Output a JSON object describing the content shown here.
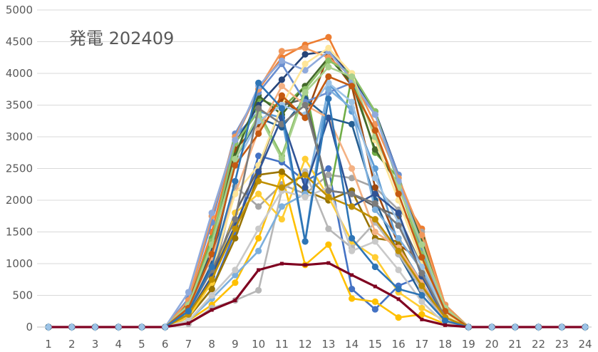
{
  "chart_data": {
    "type": "line",
    "title": "発電 202409",
    "xlabel": "",
    "ylabel": "",
    "x": [
      "1",
      "2",
      "3",
      "4",
      "5",
      "6",
      "7",
      "8",
      "9",
      "10",
      "11",
      "12",
      "13",
      "14",
      "15",
      "16",
      "17",
      "18",
      "19",
      "20",
      "21",
      "22",
      "23",
      "24"
    ],
    "ylim": [
      0,
      5000
    ],
    "yticks": [
      "0",
      "500",
      "1000",
      "1500",
      "2000",
      "2500",
      "3000",
      "3500",
      "4000",
      "4500",
      "5000"
    ],
    "grid": true,
    "legend": "none",
    "series": [
      {
        "color": "#4472C4",
        "values": [
          0,
          0,
          0,
          0,
          0,
          0,
          150,
          600,
          1500,
          2700,
          2600,
          2300,
          2500,
          600,
          280,
          650,
          800,
          150,
          0,
          0,
          0,
          0,
          0,
          0
        ]
      },
      {
        "color": "#ED7D31",
        "values": [
          0,
          0,
          0,
          0,
          0,
          0,
          380,
          1500,
          2950,
          3750,
          4250,
          4450,
          4570,
          3820,
          3100,
          2150,
          1550,
          350,
          0,
          0,
          0,
          0,
          0,
          0
        ]
      },
      {
        "color": "#A5A5A5",
        "values": [
          0,
          0,
          0,
          0,
          0,
          0,
          200,
          700,
          2220,
          1900,
          2250,
          2100,
          2400,
          2350,
          2200,
          1850,
          1500,
          200,
          0,
          0,
          0,
          0,
          0,
          0
        ]
      },
      {
        "color": "#FFC000",
        "values": [
          0,
          0,
          0,
          0,
          0,
          0,
          100,
          350,
          700,
          1400,
          2400,
          980,
          1300,
          450,
          400,
          150,
          200,
          50,
          0,
          0,
          0,
          0,
          0,
          0
        ]
      },
      {
        "color": "#5B9BD5",
        "values": [
          0,
          0,
          0,
          0,
          0,
          0,
          300,
          1200,
          3000,
          3400,
          3300,
          1350,
          3850,
          3400,
          2500,
          1300,
          700,
          150,
          0,
          0,
          0,
          0,
          0,
          0
        ]
      },
      {
        "color": "#70AD47",
        "values": [
          0,
          0,
          0,
          0,
          0,
          0,
          350,
          1400,
          2700,
          3600,
          3450,
          3800,
          2000,
          3950,
          2750,
          2350,
          1350,
          350,
          0,
          0,
          0,
          0,
          0,
          0
        ]
      },
      {
        "color": "#264478",
        "values": [
          0,
          0,
          0,
          0,
          0,
          0,
          300,
          1200,
          2900,
          3500,
          3900,
          4300,
          4350,
          3950,
          3400,
          2400,
          1100,
          150,
          0,
          0,
          0,
          0,
          0,
          0
        ]
      },
      {
        "color": "#9E480E",
        "values": [
          0,
          0,
          0,
          0,
          0,
          0,
          400,
          1300,
          2800,
          3200,
          3600,
          3300,
          4300,
          3800,
          2200,
          1300,
          1050,
          300,
          0,
          0,
          0,
          0,
          0,
          0
        ]
      },
      {
        "color": "#636363",
        "values": [
          0,
          0,
          0,
          0,
          0,
          0,
          200,
          800,
          1800,
          2500,
          3500,
          3600,
          2150,
          2100,
          1900,
          1750,
          950,
          200,
          0,
          0,
          0,
          0,
          0,
          0
        ]
      },
      {
        "color": "#997300",
        "values": [
          0,
          0,
          0,
          0,
          0,
          0,
          150,
          600,
          1400,
          2400,
          2450,
          2150,
          2000,
          2150,
          1400,
          1350,
          600,
          150,
          0,
          0,
          0,
          0,
          0,
          0
        ]
      },
      {
        "color": "#255E91",
        "values": [
          0,
          0,
          0,
          0,
          0,
          0,
          250,
          1000,
          2650,
          3300,
          3150,
          3600,
          3300,
          3200,
          2000,
          1150,
          500,
          100,
          0,
          0,
          0,
          0,
          0,
          0
        ]
      },
      {
        "color": "#43682B",
        "values": [
          0,
          0,
          0,
          0,
          0,
          0,
          300,
          1300,
          2700,
          3650,
          3350,
          3800,
          4250,
          3850,
          2800,
          2250,
          1400,
          300,
          0,
          0,
          0,
          0,
          0,
          0
        ]
      },
      {
        "color": "#698ED0",
        "values": [
          0,
          0,
          0,
          0,
          0,
          0,
          450,
          1650,
          3050,
          3700,
          4150,
          3550,
          3700,
          3850,
          3350,
          2400,
          1200,
          250,
          0,
          0,
          0,
          0,
          0,
          0
        ]
      },
      {
        "color": "#F1975A",
        "values": [
          0,
          0,
          0,
          0,
          0,
          0,
          420,
          1750,
          3000,
          3750,
          4350,
          4400,
          4250,
          3950,
          3200,
          2350,
          1450,
          350,
          0,
          0,
          0,
          0,
          0,
          0
        ]
      },
      {
        "color": "#B7B7B7",
        "values": [
          0,
          0,
          0,
          0,
          0,
          0,
          50,
          300,
          420,
          580,
          2150,
          2450,
          1550,
          1250,
          1650,
          1150,
          600,
          80,
          0,
          0,
          0,
          0,
          0,
          0
        ]
      },
      {
        "color": "#FFCD33",
        "values": [
          0,
          0,
          0,
          0,
          0,
          0,
          150,
          700,
          1800,
          2100,
          1700,
          2650,
          2050,
          1350,
          1100,
          550,
          300,
          100,
          0,
          0,
          0,
          0,
          0,
          0
        ]
      },
      {
        "color": "#7CAFDD",
        "values": [
          0,
          0,
          0,
          0,
          0,
          0,
          100,
          450,
          820,
          1200,
          1900,
          2100,
          3750,
          3450,
          1850,
          1400,
          900,
          200,
          0,
          0,
          0,
          0,
          0,
          0
        ]
      },
      {
        "color": "#8CC168",
        "values": [
          0,
          0,
          0,
          0,
          0,
          0,
          350,
          1350,
          2900,
          3400,
          2700,
          3750,
          4200,
          4000,
          3400,
          2250,
          1150,
          300,
          0,
          0,
          0,
          0,
          0,
          0
        ]
      },
      {
        "color": "#8FAADC",
        "values": [
          0,
          0,
          0,
          0,
          0,
          0,
          550,
          1800,
          2950,
          3800,
          4200,
          4050,
          4350,
          3900,
          3350,
          2300,
          1300,
          200,
          0,
          0,
          0,
          0,
          0,
          0
        ]
      },
      {
        "color": "#F4B183",
        "values": [
          0,
          0,
          0,
          0,
          0,
          0,
          300,
          1100,
          2100,
          3100,
          3800,
          3500,
          3300,
          2500,
          1500,
          1250,
          700,
          100,
          0,
          0,
          0,
          0,
          0,
          0
        ]
      },
      {
        "color": "#C9C9C9",
        "values": [
          0,
          0,
          0,
          0,
          0,
          0,
          100,
          500,
          900,
          1550,
          2150,
          2050,
          2200,
          1200,
          1350,
          900,
          400,
          50,
          0,
          0,
          0,
          0,
          0,
          0
        ]
      },
      {
        "color": "#FFE699",
        "values": [
          0,
          0,
          0,
          0,
          0,
          0,
          250,
          900,
          2100,
          2550,
          3500,
          4150,
          4400,
          4000,
          2950,
          2000,
          1000,
          200,
          0,
          0,
          0,
          0,
          0,
          0
        ]
      },
      {
        "color": "#9DC3E6",
        "values": [
          0,
          0,
          0,
          0,
          0,
          0,
          300,
          1150,
          2550,
          3250,
          3500,
          3350,
          3850,
          3550,
          2350,
          1650,
          950,
          250,
          0,
          0,
          0,
          0,
          0,
          0
        ]
      },
      {
        "color": "#A9D18E",
        "values": [
          0,
          0,
          0,
          0,
          0,
          0,
          350,
          1300,
          2650,
          3350,
          2650,
          3700,
          4100,
          3950,
          3000,
          2200,
          1300,
          300,
          0,
          0,
          0,
          0,
          0,
          0
        ]
      },
      {
        "color": "#305496",
        "values": [
          0,
          0,
          0,
          0,
          0,
          0,
          200,
          800,
          1600,
          2450,
          3300,
          2200,
          3300,
          1900,
          2100,
          1800,
          800,
          150,
          0,
          0,
          0,
          0,
          0,
          0
        ]
      },
      {
        "color": "#C55A11",
        "values": [
          0,
          0,
          0,
          0,
          0,
          0,
          300,
          1150,
          2550,
          3050,
          3650,
          3300,
          3950,
          3800,
          3100,
          2100,
          1100,
          250,
          0,
          0,
          0,
          0,
          0,
          0
        ]
      },
      {
        "color": "#7B7B7B",
        "values": [
          0,
          0,
          0,
          0,
          0,
          0,
          250,
          900,
          1700,
          3450,
          3200,
          3500,
          2150,
          2100,
          1950,
          1600,
          850,
          150,
          0,
          0,
          0,
          0,
          0,
          0
        ]
      },
      {
        "color": "#BF8F00",
        "values": [
          0,
          0,
          0,
          0,
          0,
          0,
          200,
          750,
          1550,
          2300,
          2200,
          2400,
          2050,
          1900,
          1700,
          1200,
          650,
          150,
          0,
          0,
          0,
          0,
          0,
          0
        ]
      },
      {
        "color": "#2E75B6",
        "values": [
          0,
          0,
          0,
          0,
          0,
          0,
          250,
          950,
          2300,
          3850,
          3450,
          1350,
          3600,
          1400,
          950,
          600,
          500,
          100,
          0,
          0,
          0,
          0,
          0,
          0
        ]
      },
      {
        "color": "#7F0020",
        "values": [
          0,
          0,
          0,
          0,
          0,
          0,
          60,
          270,
          420,
          900,
          1000,
          980,
          1010,
          820,
          640,
          440,
          120,
          30,
          0,
          0,
          0,
          0,
          0,
          0
        ]
      }
    ]
  }
}
